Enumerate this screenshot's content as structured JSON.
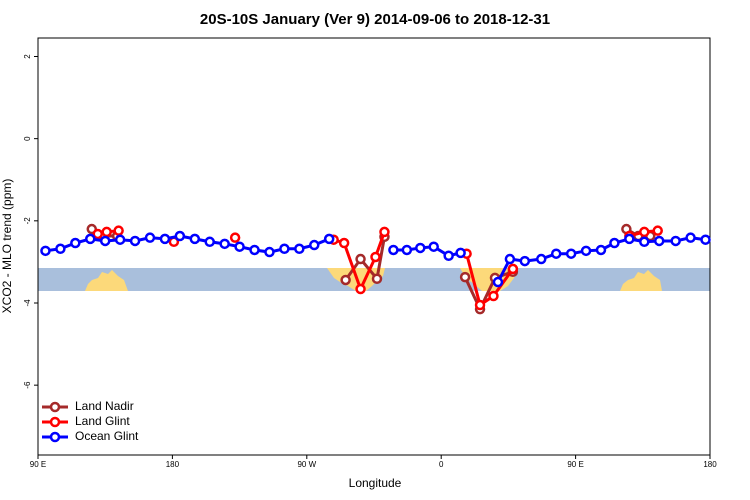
{
  "chart_data": {
    "type": "line",
    "title": "20S-10S January (Ver 9)   2014-09-06 to 2018-12-31",
    "xlabel": "Longitude",
    "ylabel": "XCO2 - MLO trend (ppm)",
    "xlim": [
      90,
      540
    ],
    "ylim": [
      -7.7,
      2.45
    ],
    "xticks": [
      {
        "value": 90,
        "label": "90 E"
      },
      180,
      {
        "value": 270,
        "label": "90 W"
      },
      {
        "value": 360,
        "label": "0"
      },
      {
        "value": 450,
        "label": "90 E"
      },
      {
        "value": 540,
        "label": "180"
      }
    ],
    "yticks": [
      2,
      0,
      -2,
      -4,
      -6
    ],
    "grid": false,
    "legend": "bottom-left",
    "series": [
      {
        "name": "Land Nadir",
        "color": "#a52a2a",
        "x": [
          126,
          134,
          143,
          210,
          296,
          306,
          317,
          322,
          350,
          376,
          386,
          396,
          408,
          450,
          484,
          492,
          500
        ],
        "values": [
          -2.2,
          -2.37,
          -2.37,
          null,
          -3.44,
          -2.93,
          -3.41,
          -2.39,
          null,
          -3.37,
          -4.15,
          -3.39,
          -3.24,
          null,
          -2.2,
          -2.37,
          -2.37
        ]
      },
      {
        "name": "Land Glint",
        "color": "#ff0000",
        "x": [
          130,
          136,
          144,
          160,
          181,
          200,
          222,
          250,
          288,
          295,
          306,
          316,
          322,
          350,
          377,
          386,
          395,
          408,
          450,
          486,
          496,
          505
        ],
        "values": [
          -2.32,
          -2.27,
          -2.24,
          null,
          -2.51,
          null,
          -2.41,
          null,
          -2.46,
          -2.54,
          -3.66,
          -2.88,
          -2.27,
          null,
          -2.8,
          -4.05,
          -3.83,
          -3.17,
          null,
          -2.37,
          -2.27,
          -2.24
        ]
      },
      {
        "name": "Ocean Glint",
        "color": "#0000ff",
        "x": [
          95,
          105,
          115,
          125,
          135,
          145,
          155,
          165,
          175,
          185,
          195,
          205,
          215,
          225,
          235,
          245,
          255,
          265,
          275,
          285,
          300,
          328,
          337,
          346,
          355,
          365,
          373,
          385,
          398,
          406,
          416,
          427,
          437,
          447,
          457,
          467,
          476,
          486,
          496,
          506,
          517,
          527,
          537
        ],
        "values": [
          -2.73,
          -2.68,
          -2.54,
          -2.44,
          -2.49,
          -2.46,
          -2.49,
          -2.41,
          -2.44,
          -2.37,
          -2.44,
          -2.51,
          -2.56,
          -2.63,
          -2.71,
          -2.76,
          -2.68,
          -2.68,
          -2.59,
          -2.44,
          null,
          -2.71,
          -2.71,
          -2.66,
          -2.63,
          -2.85,
          -2.78,
          null,
          -3.49,
          -2.93,
          -2.98,
          -2.93,
          -2.8,
          -2.8,
          -2.73,
          -2.71,
          -2.54,
          -2.44,
          -2.51,
          -2.49,
          -2.49,
          -2.41,
          -2.46
        ]
      }
    ]
  }
}
